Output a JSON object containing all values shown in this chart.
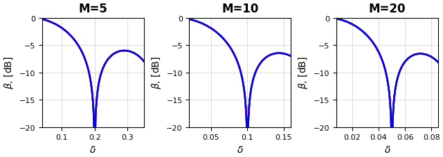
{
  "panels": [
    {
      "M": 5,
      "xlim": [
        0.04,
        0.35
      ],
      "xticks": [
        0.1,
        0.2,
        0.3
      ],
      "xticklabels": [
        "0.1",
        "0.2",
        "0.3"
      ]
    },
    {
      "M": 10,
      "xlim": [
        0.02,
        0.16
      ],
      "xticks": [
        0.05,
        0.1,
        0.15
      ],
      "xticklabels": [
        "0.05",
        "0.1",
        "0.15"
      ]
    },
    {
      "M": 20,
      "xlim": [
        0.008,
        0.085
      ],
      "xticks": [
        0.02,
        0.04,
        0.06,
        0.08
      ],
      "xticklabels": [
        "0.02",
        "0.04",
        "0.06",
        "0.08"
      ]
    }
  ],
  "ylim": [
    -20,
    0
  ],
  "yticks": [
    0,
    -5,
    -10,
    -15,
    -20
  ],
  "ylabel": "$\\beta$, [dB]",
  "xlabel": "$\\delta$",
  "blue_color": "#0000FF",
  "green_color": "#00CC00",
  "red_color": "#FF0000",
  "black_color": "#000000",
  "bg_color": "#FFFFFF",
  "n_random": 80,
  "n_points": 300,
  "title_fontsize": 12,
  "label_fontsize": 10,
  "tick_fontsize": 8,
  "lw_colored": 1.8,
  "lw_black": 0.3
}
